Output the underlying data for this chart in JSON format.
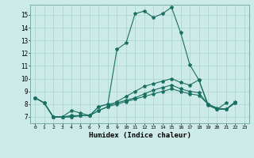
{
  "title": "",
  "xlabel": "Humidex (Indice chaleur)",
  "ylabel": "",
  "bg_color": "#cceae7",
  "line_color": "#1a7060",
  "grid_color": "#aad4d0",
  "xlim": [
    -0.5,
    23.5
  ],
  "ylim": [
    6.5,
    15.8
  ],
  "xticks": [
    0,
    1,
    2,
    3,
    4,
    5,
    6,
    7,
    8,
    9,
    10,
    11,
    12,
    13,
    14,
    15,
    16,
    17,
    18,
    19,
    20,
    21,
    22,
    23
  ],
  "yticks": [
    7,
    8,
    9,
    10,
    11,
    12,
    13,
    14,
    15
  ],
  "line1_y": [
    8.5,
    8.1,
    7.0,
    7.0,
    7.0,
    7.1,
    7.1,
    7.8,
    8.0,
    12.3,
    12.8,
    15.1,
    15.3,
    14.8,
    15.1,
    15.6,
    13.6,
    11.1,
    9.9,
    7.9,
    7.6,
    8.1,
    null,
    null
  ],
  "line2_y": [
    8.5,
    8.1,
    7.0,
    7.0,
    7.0,
    7.1,
    7.1,
    7.5,
    7.8,
    8.2,
    8.6,
    9.0,
    9.4,
    9.6,
    9.8,
    10.0,
    9.7,
    9.5,
    9.9,
    8.0,
    7.6,
    7.6,
    8.2,
    null
  ],
  "line3_y": [
    8.5,
    8.1,
    7.0,
    7.0,
    7.1,
    7.1,
    7.1,
    7.5,
    7.8,
    8.0,
    8.2,
    8.4,
    8.6,
    8.8,
    9.0,
    9.2,
    9.0,
    8.8,
    8.7,
    8.0,
    7.7,
    7.6,
    8.1,
    null
  ],
  "line4_y": [
    8.5,
    8.1,
    7.0,
    7.0,
    7.5,
    7.3,
    7.1,
    7.8,
    8.0,
    8.1,
    8.3,
    8.5,
    8.8,
    9.1,
    9.3,
    9.5,
    9.2,
    9.0,
    8.9,
    8.0,
    7.6,
    7.6,
    8.1,
    null
  ]
}
